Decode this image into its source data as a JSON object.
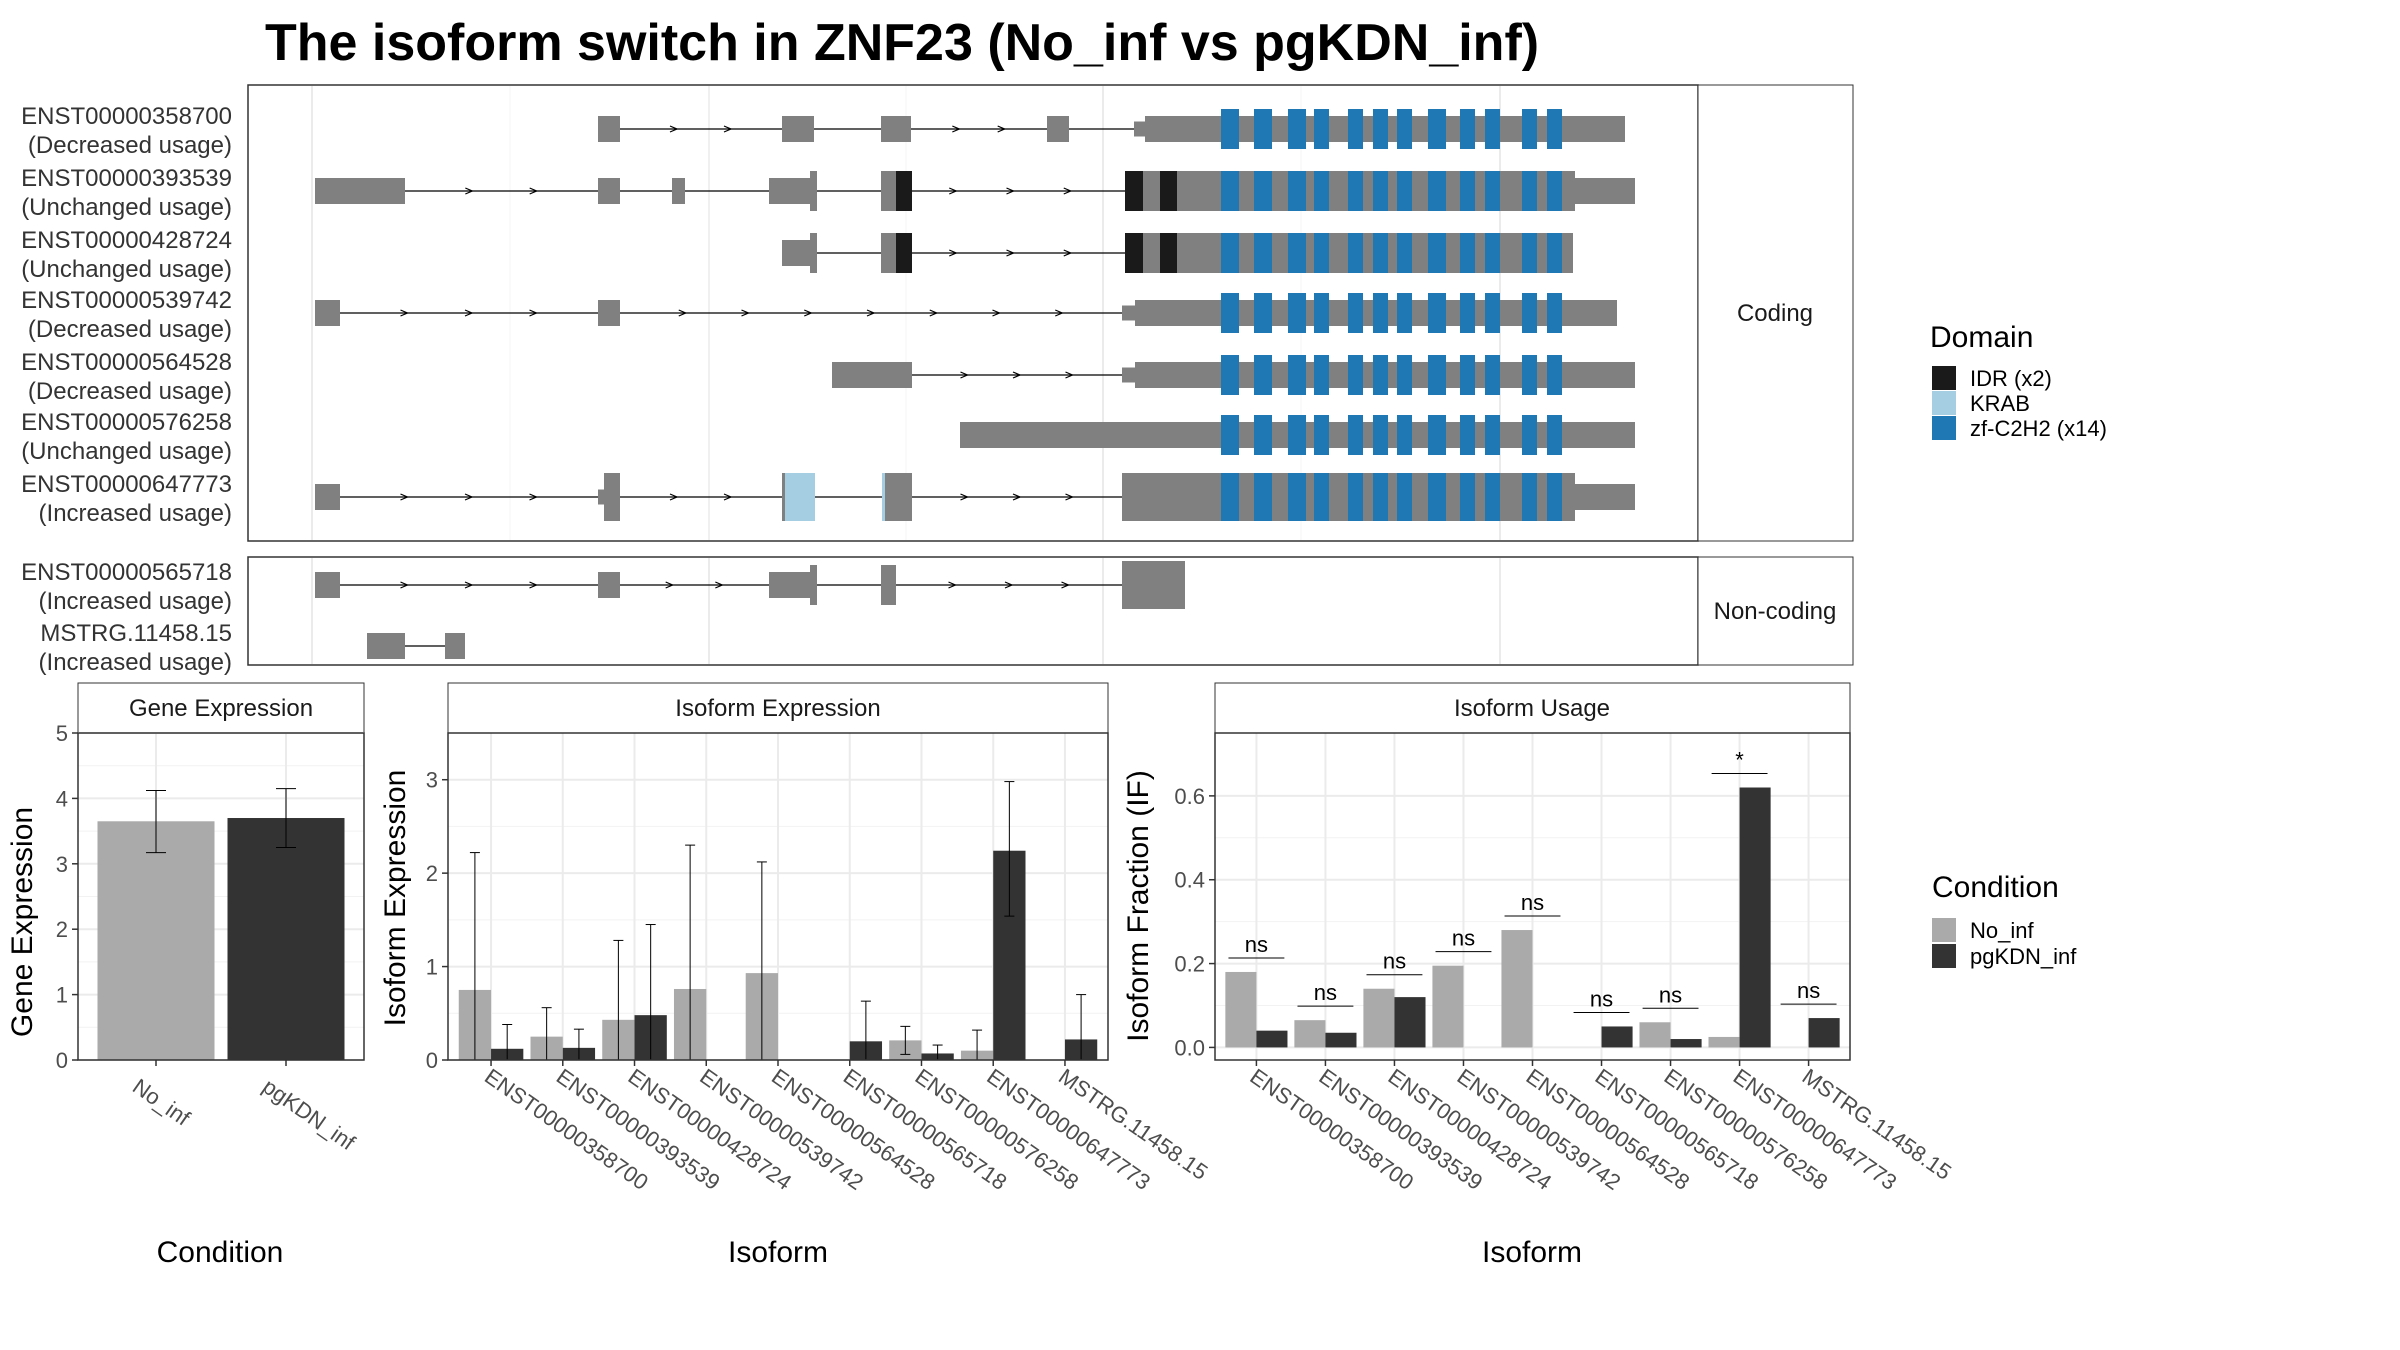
{
  "title": "The isoform switch in ZNF23 (No_inf vs pgKDN_inf)",
  "colors": {
    "exon": "#808080",
    "intron": "#000000",
    "idr": "#1a1a1a",
    "krab": "#a6cee3",
    "zf": "#1f78b4",
    "no_inf": "#aaaaaa",
    "pgkdn_inf": "#333333"
  },
  "structure": {
    "coding_label": "Coding",
    "noncoding_label": "Non-coding",
    "coding": [
      {
        "id": "ENST00000358700",
        "usage": "(Decreased usage)"
      },
      {
        "id": "ENST00000393539",
        "usage": "(Unchanged usage)"
      },
      {
        "id": "ENST00000428724",
        "usage": "(Unchanged usage)"
      },
      {
        "id": "ENST00000539742",
        "usage": "(Decreased usage)"
      },
      {
        "id": "ENST00000564528",
        "usage": "(Decreased usage)"
      },
      {
        "id": "ENST00000576258",
        "usage": "(Unchanged usage)"
      },
      {
        "id": "ENST00000647773",
        "usage": "(Increased usage)"
      }
    ],
    "noncoding": [
      {
        "id": "ENST00000565718",
        "usage": "(Increased usage)"
      },
      {
        "id": "MSTRG.11458.15",
        "usage": "(Increased usage)"
      }
    ]
  },
  "legend_domain": {
    "title": "Domain",
    "items": [
      {
        "label": "IDR (x2)",
        "color": "#1a1a1a"
      },
      {
        "label": "KRAB",
        "color": "#a6cee3"
      },
      {
        "label": "zf-C2H2 (x14)",
        "color": "#1f78b4"
      }
    ]
  },
  "legend_condition": {
    "title": "Condition",
    "items": [
      {
        "label": "No_inf",
        "color": "#aaaaaa"
      },
      {
        "label": "pgKDN_inf",
        "color": "#333333"
      }
    ]
  },
  "chart_data": [
    {
      "type": "bar",
      "title": "Gene Expression",
      "xlabel": "Condition",
      "ylabel": "Gene Expression",
      "categories": [
        "No_inf",
        "pgKDN_inf"
      ],
      "values": [
        3.65,
        3.7
      ],
      "error_low": [
        3.17,
        3.25
      ],
      "error_high": [
        4.12,
        4.15
      ],
      "ylim": [
        0,
        5
      ],
      "yticks": [
        0,
        1,
        2,
        3,
        4,
        5
      ]
    },
    {
      "type": "bar",
      "title": "Isoform Expression",
      "xlabel": "Isoform",
      "ylabel": "Isoform Expression",
      "categories": [
        "ENST00000358700",
        "ENST00000393539",
        "ENST00000428724",
        "ENST00000539742",
        "ENST00000564528",
        "ENST00000565718",
        "ENST00000576258",
        "ENST00000647773",
        "MSTRG.11458.15"
      ],
      "series": [
        {
          "name": "No_inf",
          "values": [
            0.75,
            0.25,
            0.43,
            0.76,
            0.93,
            0.0,
            0.21,
            0.1,
            0.0
          ],
          "error_low": [
            0.0,
            0.0,
            0.0,
            0.0,
            0.0,
            0.0,
            0.06,
            0.0,
            0.0
          ],
          "error_high": [
            2.22,
            0.56,
            1.28,
            2.3,
            2.12,
            0.0,
            0.36,
            0.32,
            0.0
          ]
        },
        {
          "name": "pgKDN_inf",
          "values": [
            0.12,
            0.13,
            0.48,
            0.0,
            0.0,
            0.2,
            0.07,
            2.24,
            0.22
          ],
          "error_low": [
            0.0,
            0.0,
            0.0,
            0.0,
            0.0,
            0.0,
            0.0,
            1.54,
            0.0
          ],
          "error_high": [
            0.38,
            0.33,
            1.45,
            0.0,
            0.0,
            0.63,
            0.16,
            2.98,
            0.7
          ]
        }
      ],
      "ylim": [
        0,
        3.5
      ],
      "yticks": [
        0,
        1,
        2,
        3
      ]
    },
    {
      "type": "bar",
      "title": "Isoform Usage",
      "xlabel": "Isoform",
      "ylabel": "Isoform Fraction (IF)",
      "categories": [
        "ENST00000358700",
        "ENST00000393539",
        "ENST00000428724",
        "ENST00000539742",
        "ENST00000564528",
        "ENST00000565718",
        "ENST00000576258",
        "ENST00000647773",
        "MSTRG.11458.15"
      ],
      "series": [
        {
          "name": "No_inf",
          "values": [
            0.18,
            0.065,
            0.14,
            0.195,
            0.28,
            0.0,
            0.06,
            0.025,
            0.0
          ]
        },
        {
          "name": "pgKDN_inf",
          "values": [
            0.04,
            0.035,
            0.12,
            0.0,
            0.0,
            0.05,
            0.02,
            0.62,
            0.07
          ]
        }
      ],
      "significance": [
        "ns",
        "ns",
        "ns",
        "ns",
        "ns",
        "ns",
        "ns",
        "*",
        "ns"
      ],
      "ylim": [
        -0.03,
        0.75
      ],
      "yticks": [
        0.0,
        0.2,
        0.4,
        0.6
      ],
      "ytick_labels": [
        "0.0",
        "0.2",
        "0.4",
        "0.6"
      ]
    }
  ]
}
